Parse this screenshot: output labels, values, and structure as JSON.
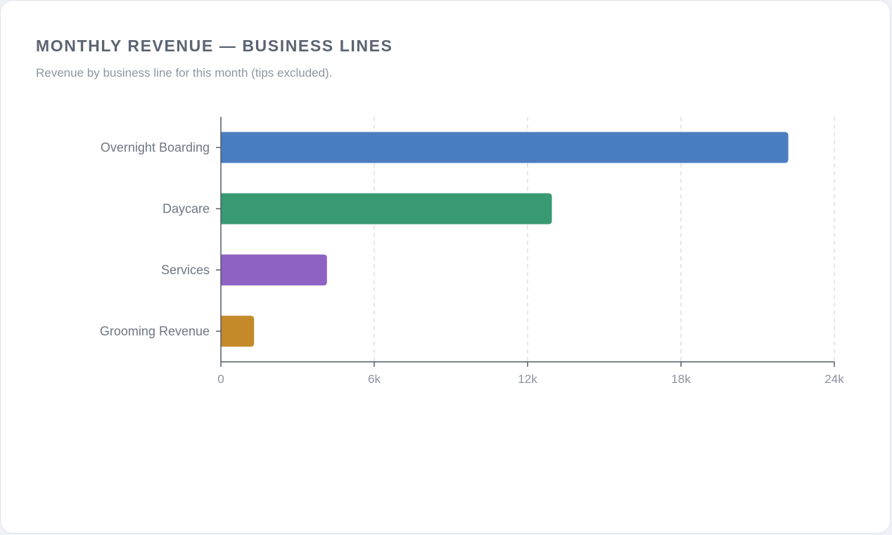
{
  "card": {
    "title": "MONTHLY REVENUE — BUSINESS LINES",
    "subtitle": "Revenue by business line for this month (tips excluded)."
  },
  "chart_data": {
    "type": "bar",
    "orientation": "horizontal",
    "title": "MONTHLY REVENUE — BUSINESS LINES",
    "subtitle": "Revenue by business line for this month (tips excluded).",
    "categories": [
      "Overnight Boarding",
      "Daycare",
      "Services",
      "Grooming Revenue"
    ],
    "values": [
      22200,
      12950,
      4150,
      1300
    ],
    "colors": [
      "#4a7dbf",
      "#389a73",
      "#8e62c3",
      "#c48a29"
    ],
    "xlim": [
      0,
      24000
    ],
    "xticks": [
      0,
      6000,
      12000,
      18000,
      24000
    ],
    "xtick_labels": [
      "0",
      "6k",
      "12k",
      "18k",
      "24k"
    ],
    "xlabel": "",
    "ylabel": "",
    "grid": "vertical dashed",
    "legend": "none"
  }
}
